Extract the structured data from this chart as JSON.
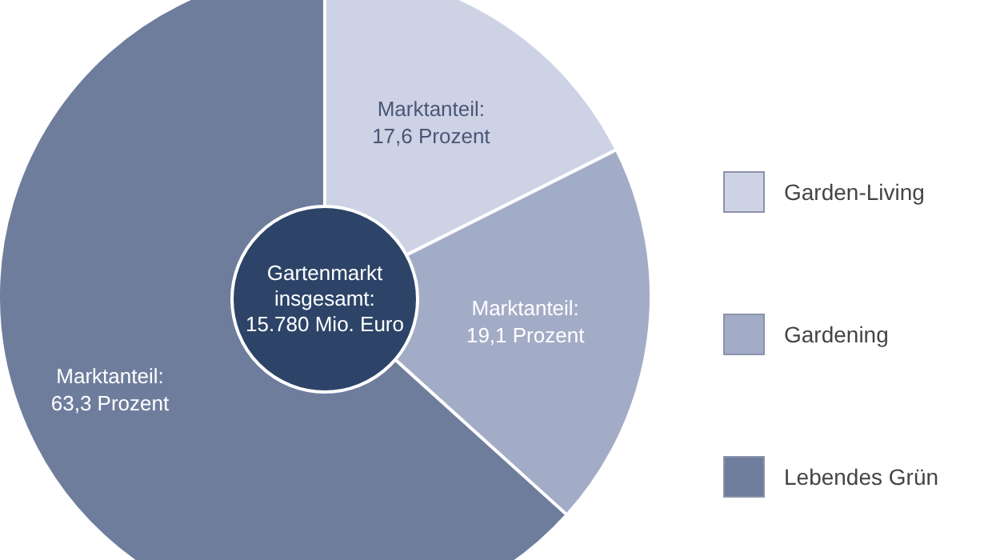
{
  "chart_data": {
    "type": "donut",
    "categories": [
      "Garden-Living",
      "Gardening",
      "Lebendes Grün"
    ],
    "values": [
      17.6,
      19.1,
      63.3
    ],
    "colors": [
      "#cdd3e4",
      "#a3acc7",
      "#6f7d9d"
    ],
    "value_labels": [
      "Marktanteil:\n17,6 Prozent",
      "Marktanteil:\n19,1 Prozent",
      "Marktanteil:\n63,3 Prozent"
    ],
    "annotations": [
      "Gartenmarkt\ninsgesamt:\n15.780 Mio. Euro"
    ],
    "legend": "right"
  }
}
